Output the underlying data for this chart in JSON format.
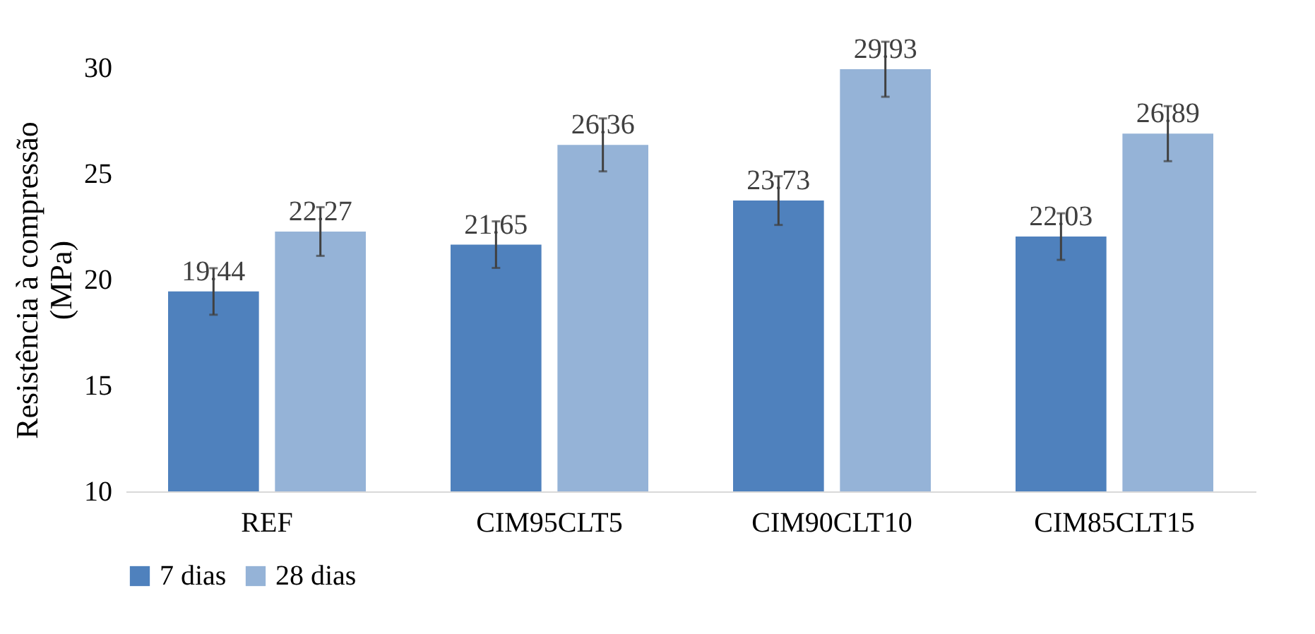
{
  "chart_data": {
    "type": "bar",
    "ylabel": "Resistência à compressão (MPa)",
    "categories": [
      "REF",
      "CIM95CLT5",
      "CIM90CLT10",
      "CIM85CLT15"
    ],
    "series": [
      {
        "name": "7 dias",
        "color": "#4f81bd",
        "values": [
          19.44,
          21.65,
          23.73,
          22.03
        ],
        "errors": [
          1.1,
          1.1,
          1.15,
          1.1
        ]
      },
      {
        "name": "28 dias",
        "color": "#95b3d7",
        "values": [
          22.27,
          26.36,
          29.93,
          26.89
        ],
        "errors": [
          1.15,
          1.25,
          1.3,
          1.3
        ]
      }
    ],
    "ylim": [
      10,
      30
    ],
    "yticks": [
      10,
      15,
      20,
      25,
      30
    ],
    "data_labels": true,
    "legend": "bottom",
    "grid": false
  }
}
